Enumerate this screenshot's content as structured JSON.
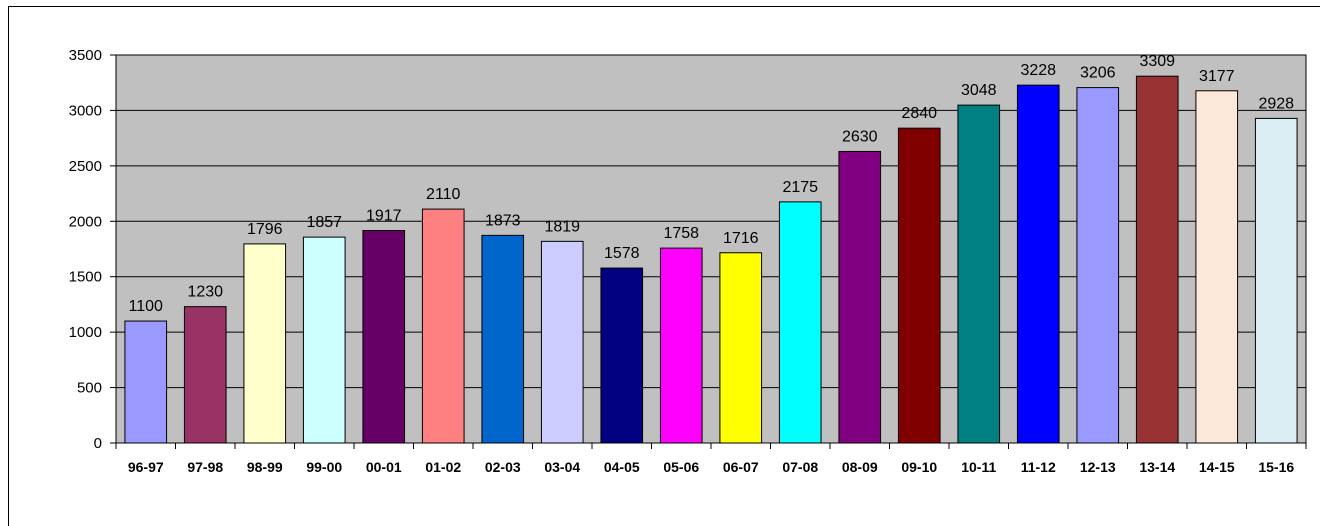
{
  "chart_data": {
    "type": "bar",
    "title": "",
    "xlabel": "",
    "ylabel": "",
    "ylim": [
      0,
      3500
    ],
    "yticks": [
      0,
      500,
      1000,
      1500,
      2000,
      2500,
      3000,
      3500
    ],
    "grid": true,
    "legend": "none",
    "plot_background": "#c0c0c0",
    "categories": [
      "96-97",
      "97-98",
      "98-99",
      "99-00",
      "00-01",
      "01-02",
      "02-03",
      "03-04",
      "04-05",
      "05-06",
      "06-07",
      "07-08",
      "08-09",
      "09-10",
      "10-11",
      "11-12",
      "12-13",
      "13-14",
      "14-15",
      "15-16"
    ],
    "values": [
      1100,
      1230,
      1796,
      1857,
      1917,
      2110,
      1873,
      1819,
      1578,
      1758,
      1716,
      2175,
      2630,
      2840,
      3048,
      3228,
      3206,
      3309,
      3177,
      2928
    ],
    "colors": [
      "#9999ff",
      "#993366",
      "#ffffcc",
      "#ccffff",
      "#660066",
      "#ff8080",
      "#0066cc",
      "#ccccff",
      "#000080",
      "#ff00ff",
      "#ffff00",
      "#00ffff",
      "#800080",
      "#800000",
      "#008080",
      "#0000ff",
      "#9999ff",
      "#993333",
      "#fde9d9",
      "#daeef3"
    ]
  }
}
